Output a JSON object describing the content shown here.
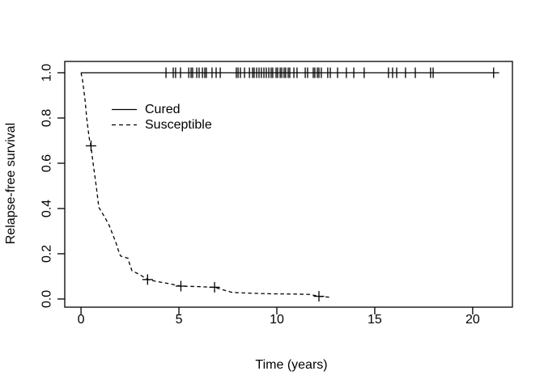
{
  "figure": {
    "background": "#ffffff",
    "foreground": "#000000"
  },
  "chart_data": {
    "type": "line",
    "title": "",
    "xlabel": "Time (years)",
    "ylabel": "Relapse-free survival",
    "xlim": [
      -0.83,
      22.03
    ],
    "ylim": [
      -0.036,
      1.05
    ],
    "grid": false,
    "legend_position": "inside-top-left",
    "x_tick_values": [
      0,
      5,
      10,
      15,
      20
    ],
    "x_tick_labels": [
      "0",
      "5",
      "10",
      "15",
      "20"
    ],
    "y_tick_values": [
      0.0,
      0.2,
      0.4,
      0.6,
      0.8,
      1.0
    ],
    "y_tick_labels": [
      "0.0",
      "0.2",
      "0.4",
      "0.6",
      "0.8",
      "1.0"
    ],
    "legend": {
      "entries": [
        {
          "label": "Cured",
          "line_style": "solid"
        },
        {
          "label": "Susceptible",
          "line_style": "dashed"
        }
      ]
    },
    "series": [
      {
        "name": "Cured",
        "line_style": "solid",
        "censor_mark": "tick",
        "points": [
          [
            0,
            1.0
          ],
          [
            21.35,
            1.0
          ]
        ],
        "censors": [
          [
            4.34,
            1
          ],
          [
            4.71,
            1
          ],
          [
            4.83,
            1
          ],
          [
            5.08,
            1
          ],
          [
            5.5,
            1
          ],
          [
            5.62,
            1
          ],
          [
            5.7,
            1
          ],
          [
            5.91,
            1
          ],
          [
            6.03,
            1
          ],
          [
            6.2,
            1
          ],
          [
            6.32,
            1
          ],
          [
            6.4,
            1
          ],
          [
            6.69,
            1
          ],
          [
            6.9,
            1
          ],
          [
            7.11,
            1
          ],
          [
            7.93,
            1
          ],
          [
            8.02,
            1
          ],
          [
            8.14,
            1
          ],
          [
            8.35,
            1
          ],
          [
            8.6,
            1
          ],
          [
            8.76,
            1
          ],
          [
            8.84,
            1
          ],
          [
            8.97,
            1
          ],
          [
            9.09,
            1
          ],
          [
            9.21,
            1
          ],
          [
            9.34,
            1
          ],
          [
            9.46,
            1
          ],
          [
            9.59,
            1
          ],
          [
            9.71,
            1
          ],
          [
            9.79,
            1
          ],
          [
            9.96,
            1
          ],
          [
            10.04,
            1
          ],
          [
            10.17,
            1
          ],
          [
            10.25,
            1
          ],
          [
            10.37,
            1
          ],
          [
            10.45,
            1
          ],
          [
            10.58,
            1
          ],
          [
            10.66,
            1
          ],
          [
            10.87,
            1
          ],
          [
            11.03,
            1
          ],
          [
            11.45,
            1
          ],
          [
            11.57,
            1
          ],
          [
            11.86,
            1
          ],
          [
            11.94,
            1
          ],
          [
            12.07,
            1
          ],
          [
            12.15,
            1
          ],
          [
            12.27,
            1
          ],
          [
            12.6,
            1
          ],
          [
            12.73,
            1
          ],
          [
            13.1,
            1
          ],
          [
            13.55,
            1
          ],
          [
            13.93,
            1
          ],
          [
            14.46,
            1
          ],
          [
            15.7,
            1
          ],
          [
            15.91,
            1
          ],
          [
            16.12,
            1
          ],
          [
            16.57,
            1
          ],
          [
            17.07,
            1
          ],
          [
            17.85,
            1
          ],
          [
            17.98,
            1
          ],
          [
            21.07,
            1
          ]
        ]
      },
      {
        "name": "Susceptible",
        "line_style": "dashed",
        "censor_mark": "plus",
        "points": [
          [
            0,
            1.0
          ],
          [
            0.07,
            0.97
          ],
          [
            0.14,
            0.925
          ],
          [
            0.21,
            0.875
          ],
          [
            0.29,
            0.8
          ],
          [
            0.37,
            0.745
          ],
          [
            0.44,
            0.7
          ],
          [
            0.51,
            0.677
          ],
          [
            0.58,
            0.625
          ],
          [
            0.66,
            0.575
          ],
          [
            0.79,
            0.49
          ],
          [
            0.91,
            0.405
          ],
          [
            1.05,
            0.385
          ],
          [
            1.24,
            0.357
          ],
          [
            1.44,
            0.325
          ],
          [
            1.57,
            0.296
          ],
          [
            1.78,
            0.25
          ],
          [
            1.94,
            0.207
          ],
          [
            2.02,
            0.19
          ],
          [
            2.4,
            0.18
          ],
          [
            2.48,
            0.155
          ],
          [
            2.6,
            0.125
          ],
          [
            3.02,
            0.107
          ],
          [
            3.4,
            0.086
          ],
          [
            3.9,
            0.077
          ],
          [
            4.5,
            0.068
          ],
          [
            5.1,
            0.057
          ],
          [
            5.9,
            0.055
          ],
          [
            6.82,
            0.052
          ],
          [
            7.2,
            0.042
          ],
          [
            7.73,
            0.029
          ],
          [
            8.5,
            0.026
          ],
          [
            9.75,
            0.023
          ],
          [
            11.0,
            0.022
          ],
          [
            11.7,
            0.02
          ],
          [
            12.15,
            0.012
          ],
          [
            12.7,
            0.008
          ]
        ],
        "censors": [
          [
            0.51,
            0.677
          ],
          [
            3.4,
            0.086
          ],
          [
            5.1,
            0.057
          ],
          [
            6.82,
            0.052
          ],
          [
            12.15,
            0.012
          ]
        ]
      }
    ]
  }
}
